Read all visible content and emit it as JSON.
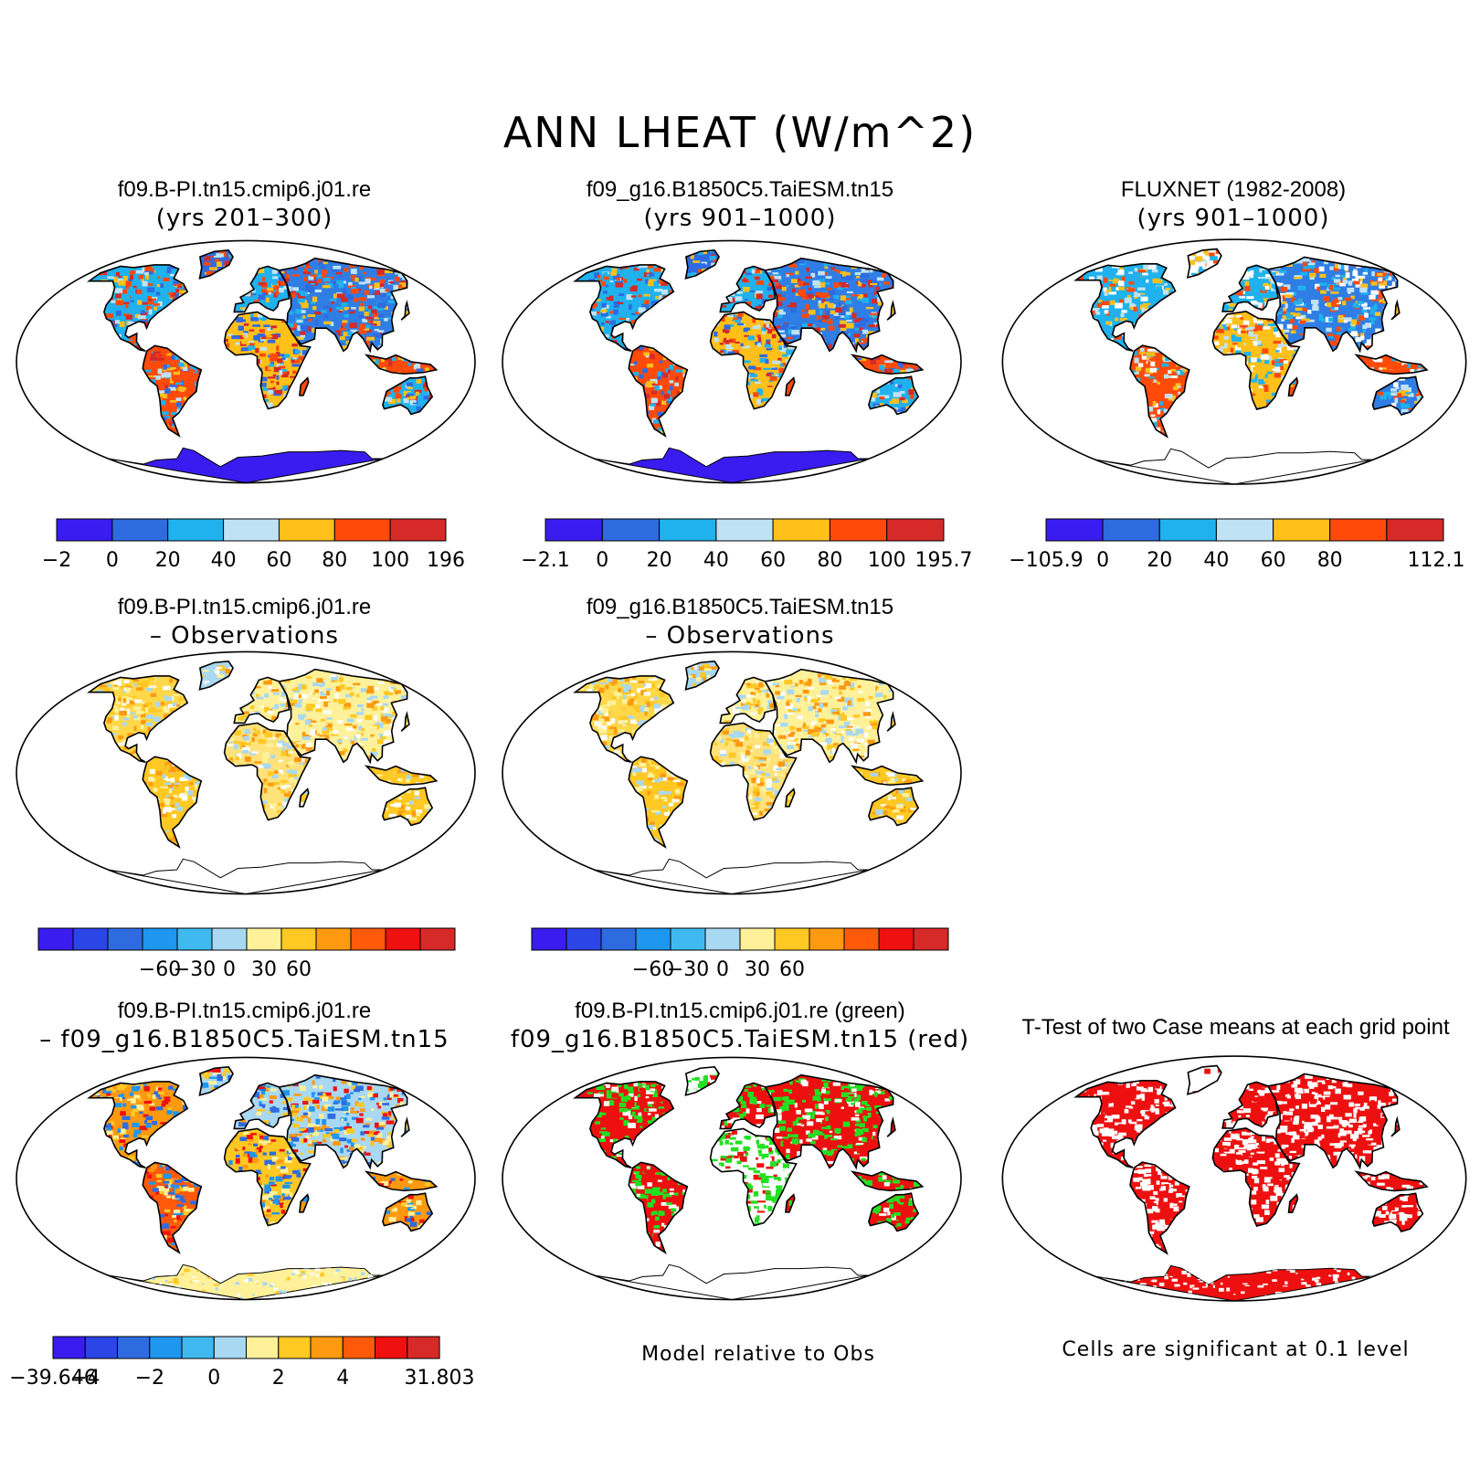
{
  "title": "ANN LHEAT (W/m^2)",
  "panels": [
    {
      "id": "p1",
      "title_lines": [
        "f09.B-PI.tn15.cmip6.j01.re",
        "(yrs 201–300)"
      ],
      "scheme": "abs",
      "antarctica": "blue"
    },
    {
      "id": "p2",
      "title_lines": [
        "f09_g16.B1850C5.TaiESM.tn15",
        "(yrs 901–1000)"
      ],
      "scheme": "abs",
      "antarctica": "blue"
    },
    {
      "id": "p3",
      "title_lines": [
        "FLUXNET (1982-2008)",
        "(yrs 901–1000)"
      ],
      "scheme": "abs_obs",
      "antarctica": "empty"
    },
    {
      "id": "p4",
      "title_lines": [
        "f09.B-PI.tn15.cmip6.j01.re",
        "– Observations"
      ],
      "scheme": "diff",
      "antarctica": "empty"
    },
    {
      "id": "p5",
      "title_lines": [
        "f09_g16.B1850C5.TaiESM.tn15",
        "– Observations"
      ],
      "scheme": "diff",
      "antarctica": "empty"
    },
    {
      "id": "p6",
      "title_lines": [
        "f09.B-PI.tn15.cmip6.j01.re",
        "– f09_g16.B1850C5.TaiESM.tn15"
      ],
      "scheme": "diff2",
      "antarctica": "yellow"
    },
    {
      "id": "p7",
      "title_lines": [
        "f09.B-PI.tn15.cmip6.j01.re (green)",
        "f09_g16.B1850C5.TaiESM.tn15 (red)"
      ],
      "scheme": "rg",
      "antarctica": "empty"
    },
    {
      "id": "p8",
      "title_lines": [
        "T-Test of two Case means at each grid point"
      ],
      "scheme": "ttest",
      "antarctica": "red"
    }
  ],
  "colorbars": [
    {
      "id": "cb1",
      "colors": [
        "#3a1cf0",
        "#2f6be0",
        "#1fb2ee",
        "#bfe3f5",
        "#ffc01a",
        "#ff4a0a",
        "#d62a28"
      ],
      "labels": [
        "−2",
        "0",
        "20",
        "40",
        "60",
        "80",
        "100",
        "196"
      ]
    },
    {
      "id": "cb2",
      "colors": [
        "#3a1cf0",
        "#2f6be0",
        "#1fb2ee",
        "#bfe3f5",
        "#ffc01a",
        "#ff4a0a",
        "#d62a28"
      ],
      "labels": [
        "−2.1",
        "0",
        "20",
        "40",
        "60",
        "80",
        "100",
        "195.7"
      ]
    },
    {
      "id": "cb3",
      "colors": [
        "#3a1cf0",
        "#2f6be0",
        "#1fb2ee",
        "#bfe3f5",
        "#ffc01a",
        "#ff4a0a",
        "#d62a28"
      ],
      "labels": [
        "−105.9",
        "0",
        "20",
        "40",
        "60",
        "80",
        "",
        "112.1"
      ]
    },
    {
      "id": "cb4",
      "colors": [
        "#3a1cf0",
        "#2b45e6",
        "#2f6be0",
        "#1f96ef",
        "#3fb9ef",
        "#a9d8f2",
        "#fff19a",
        "#ffc823",
        "#ff9a10",
        "#ff5a0a",
        "#ef1010",
        "#d62a28"
      ],
      "labels": [
        "",
        "",
        "−60",
        "−30",
        "0",
        "30",
        "60",
        "",
        ""
      ]
    },
    {
      "id": "cb5",
      "colors": [
        "#3a1cf0",
        "#2b45e6",
        "#2f6be0",
        "#1f96ef",
        "#3fb9ef",
        "#a9d8f2",
        "#fff19a",
        "#ffc823",
        "#ff9a10",
        "#ff5a0a",
        "#ef1010",
        "#d62a28"
      ],
      "labels": [
        "",
        "",
        "−60",
        "−30",
        "0",
        "30",
        "60",
        "",
        ""
      ]
    },
    {
      "id": "cb6",
      "colors": [
        "#3a1cf0",
        "#2b45e6",
        "#2f6be0",
        "#1f96ef",
        "#3fb9ef",
        "#a9d8f2",
        "#fff19a",
        "#ffc823",
        "#ff9a10",
        "#ff5a0a",
        "#ef1010",
        "#d62a28"
      ],
      "labels": [
        "−39.646",
        "−4",
        "",
        "−2",
        "",
        "0",
        "",
        "2",
        "",
        "4",
        "",
        "31.803"
      ]
    }
  ],
  "notes": {
    "model_relative": "Model relative to Obs",
    "significance": "Cells are significant at 0.1 level"
  }
}
